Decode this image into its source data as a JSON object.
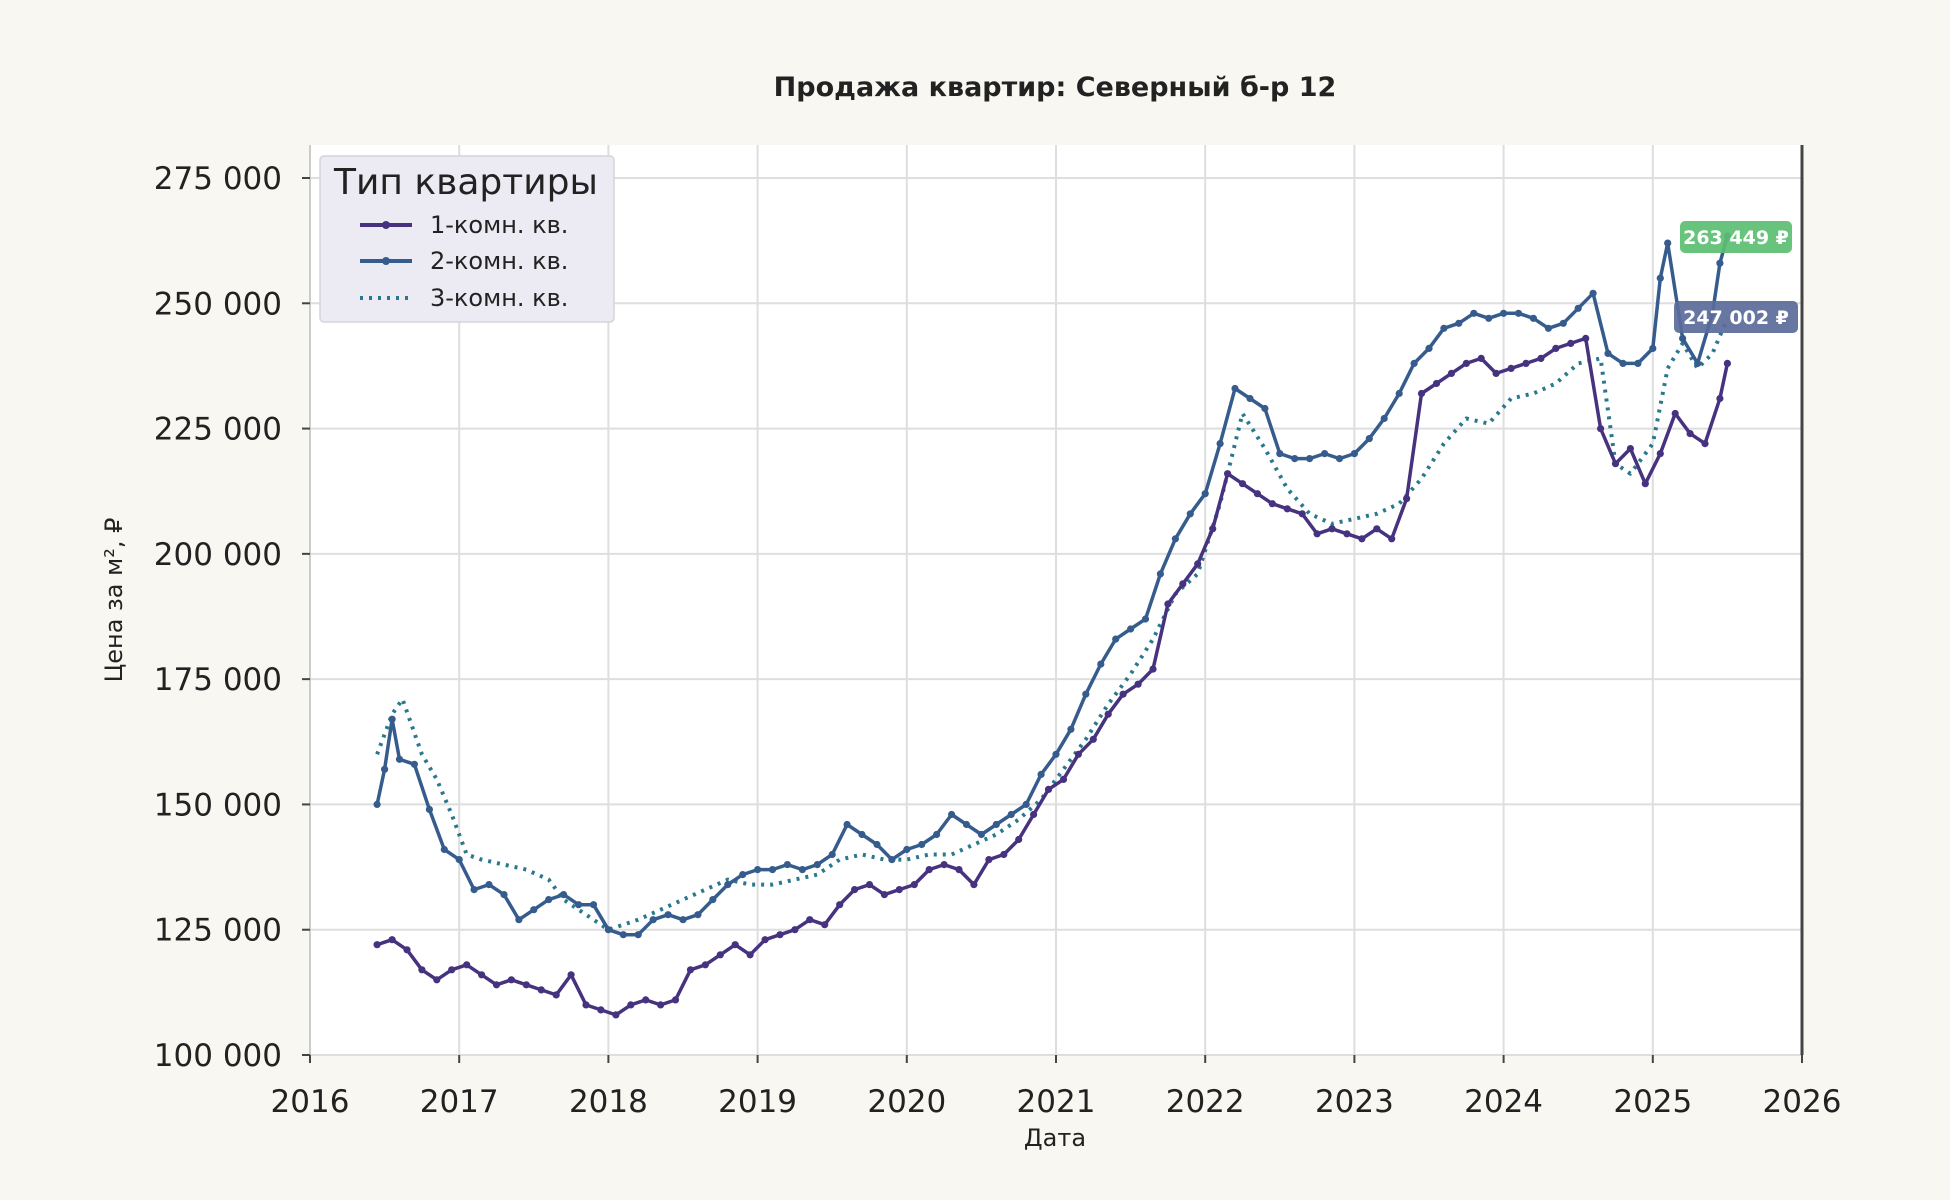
{
  "chart_data": {
    "type": "line",
    "title": "Продажа квартир: Северный б-р 12",
    "xlabel": "Дата",
    "ylabel": "Цена за м², ₽",
    "xlim": [
      2016,
      2026
    ],
    "ylim": [
      100000,
      280000
    ],
    "x_ticks": [
      "2016",
      "2017",
      "2018",
      "2019",
      "2020",
      "2021",
      "2022",
      "2023",
      "2024",
      "2025",
      "2026"
    ],
    "y_ticks": [
      "100 000",
      "125 000",
      "150 000",
      "175 000",
      "200 000",
      "225 000",
      "250 000",
      "275 000"
    ],
    "y_tick_values": [
      100000,
      125000,
      150000,
      175000,
      200000,
      225000,
      250000,
      275000
    ],
    "grid": true,
    "legend": {
      "title": "Тип квартиры",
      "placement": "top-left"
    },
    "series": [
      {
        "name": "1-комн. кв.",
        "color": "#46327e",
        "style": "solid-markers",
        "x": [
          2016.45,
          2016.55,
          2016.65,
          2016.75,
          2016.85,
          2016.95,
          2017.05,
          2017.15,
          2017.25,
          2017.35,
          2017.45,
          2017.55,
          2017.65,
          2017.75,
          2017.85,
          2017.95,
          2018.05,
          2018.15,
          2018.25,
          2018.35,
          2018.45,
          2018.55,
          2018.65,
          2018.75,
          2018.85,
          2018.95,
          2019.05,
          2019.15,
          2019.25,
          2019.35,
          2019.45,
          2019.55,
          2019.65,
          2019.75,
          2019.85,
          2019.95,
          2020.05,
          2020.15,
          2020.25,
          2020.35,
          2020.45,
          2020.55,
          2020.65,
          2020.75,
          2020.85,
          2020.95,
          2021.05,
          2021.15,
          2021.25,
          2021.35,
          2021.45,
          2021.55,
          2021.65,
          2021.75,
          2021.85,
          2021.95,
          2022.05,
          2022.15,
          2022.25,
          2022.35,
          2022.45,
          2022.55,
          2022.65,
          2022.75,
          2022.85,
          2022.95,
          2023.05,
          2023.15,
          2023.25,
          2023.35,
          2023.45,
          2023.55,
          2023.65,
          2023.75,
          2023.85,
          2023.95,
          2024.05,
          2024.15,
          2024.25,
          2024.35,
          2024.45,
          2024.55,
          2024.65,
          2024.75,
          2024.85,
          2024.95,
          2025.05,
          2025.15,
          2025.25,
          2025.35,
          2025.45,
          2025.5
        ],
        "y": [
          122000,
          123000,
          121000,
          117000,
          115000,
          117000,
          118000,
          116000,
          114000,
          115000,
          114000,
          113000,
          112000,
          116000,
          110000,
          109000,
          108000,
          110000,
          111000,
          110000,
          111000,
          117000,
          118000,
          120000,
          122000,
          120000,
          123000,
          124000,
          125000,
          127000,
          126000,
          130000,
          133000,
          134000,
          132000,
          133000,
          134000,
          137000,
          138000,
          137000,
          134000,
          139000,
          140000,
          143000,
          148000,
          153000,
          155000,
          160000,
          163000,
          168000,
          172000,
          174000,
          177000,
          190000,
          194000,
          198000,
          205000,
          216000,
          214000,
          212000,
          210000,
          209000,
          208000,
          204000,
          205000,
          204000,
          203000,
          205000,
          203000,
          211000,
          232000,
          234000,
          236000,
          238000,
          239000,
          236000,
          237000,
          238000,
          239000,
          241000,
          242000,
          243000,
          225000,
          218000,
          221000,
          214000,
          220000,
          228000,
          224000,
          222000,
          231000,
          238000
        ]
      },
      {
        "name": "2-комн. кв.",
        "color": "#365c8d",
        "style": "solid-markers",
        "x": [
          2016.45,
          2016.5,
          2016.55,
          2016.6,
          2016.7,
          2016.8,
          2016.9,
          2017.0,
          2017.1,
          2017.2,
          2017.3,
          2017.4,
          2017.5,
          2017.6,
          2017.7,
          2017.8,
          2017.9,
          2018.0,
          2018.1,
          2018.2,
          2018.3,
          2018.4,
          2018.5,
          2018.6,
          2018.7,
          2018.8,
          2018.9,
          2019.0,
          2019.1,
          2019.2,
          2019.3,
          2019.4,
          2019.5,
          2019.6,
          2019.7,
          2019.8,
          2019.9,
          2020.0,
          2020.1,
          2020.2,
          2020.3,
          2020.4,
          2020.5,
          2020.6,
          2020.7,
          2020.8,
          2020.9,
          2021.0,
          2021.1,
          2021.2,
          2021.3,
          2021.4,
          2021.5,
          2021.6,
          2021.7,
          2021.8,
          2021.9,
          2022.0,
          2022.1,
          2022.2,
          2022.3,
          2022.4,
          2022.5,
          2022.6,
          2022.7,
          2022.8,
          2022.9,
          2023.0,
          2023.1,
          2023.2,
          2023.3,
          2023.4,
          2023.5,
          2023.6,
          2023.7,
          2023.8,
          2023.9,
          2024.0,
          2024.1,
          2024.2,
          2024.3,
          2024.4,
          2024.5,
          2024.6,
          2024.7,
          2024.8,
          2024.9,
          2025.0,
          2025.05,
          2025.1,
          2025.2,
          2025.3,
          2025.4,
          2025.45,
          2025.5
        ],
        "y": [
          150000,
          157000,
          167000,
          159000,
          158000,
          149000,
          141000,
          139000,
          133000,
          134000,
          132000,
          127000,
          129000,
          131000,
          132000,
          130000,
          130000,
          125000,
          124000,
          124000,
          127000,
          128000,
          127000,
          128000,
          131000,
          134000,
          136000,
          137000,
          137000,
          138000,
          137000,
          138000,
          140000,
          146000,
          144000,
          142000,
          139000,
          141000,
          142000,
          144000,
          148000,
          146000,
          144000,
          146000,
          148000,
          150000,
          156000,
          160000,
          165000,
          172000,
          178000,
          183000,
          185000,
          187000,
          196000,
          203000,
          208000,
          212000,
          222000,
          233000,
          231000,
          229000,
          220000,
          219000,
          219000,
          220000,
          219000,
          220000,
          223000,
          227000,
          232000,
          238000,
          241000,
          245000,
          246000,
          248000,
          247000,
          248000,
          248000,
          247000,
          245000,
          246000,
          249000,
          252000,
          240000,
          238000,
          238000,
          241000,
          255000,
          262000,
          243000,
          238000,
          248000,
          258000,
          263449
        ]
      },
      {
        "name": "3-комн. кв.",
        "color": "#2a788e",
        "style": "dotted",
        "x": [
          2016.45,
          2016.55,
          2016.62,
          2016.75,
          2016.85,
          2016.95,
          2017.05,
          2017.15,
          2017.3,
          2017.45,
          2017.6,
          2017.7,
          2017.8,
          2017.9,
          2018.0,
          2018.1,
          2018.2,
          2018.35,
          2018.5,
          2018.65,
          2018.8,
          2018.95,
          2019.1,
          2019.25,
          2019.4,
          2019.55,
          2019.7,
          2019.85,
          2020.0,
          2020.15,
          2020.3,
          2020.45,
          2020.6,
          2020.75,
          2020.9,
          2021.05,
          2021.2,
          2021.35,
          2021.5,
          2021.65,
          2021.8,
          2021.95,
          2022.1,
          2022.25,
          2022.4,
          2022.55,
          2022.7,
          2022.85,
          2023.0,
          2023.15,
          2023.3,
          2023.45,
          2023.6,
          2023.75,
          2023.9,
          2024.05,
          2024.2,
          2024.35,
          2024.5,
          2024.65,
          2024.75,
          2024.85,
          2025.0,
          2025.1,
          2025.2,
          2025.3,
          2025.4,
          2025.5
        ],
        "y": [
          160000,
          168000,
          171000,
          160000,
          155000,
          148000,
          140000,
          139000,
          138000,
          137000,
          135000,
          131000,
          129000,
          127000,
          125000,
          126000,
          127000,
          129000,
          131000,
          133000,
          135000,
          134000,
          134000,
          135000,
          136000,
          139000,
          140000,
          139000,
          139000,
          140000,
          140000,
          142000,
          144000,
          147000,
          151000,
          157000,
          163000,
          170000,
          176000,
          183000,
          192000,
          196000,
          210000,
          228000,
          221000,
          213000,
          208000,
          206000,
          207000,
          208000,
          210000,
          215000,
          222000,
          227000,
          226000,
          231000,
          232000,
          234000,
          238000,
          239000,
          218000,
          216000,
          222000,
          237000,
          242000,
          237000,
          240000,
          247002
        ]
      }
    ],
    "annotations": [
      {
        "text": "263 449 ₽",
        "series": "2-комн. кв.",
        "value": 263449,
        "color": "#5bbf72"
      },
      {
        "text": "247 002 ₽",
        "series": "3-комн. кв.",
        "value": 247002,
        "color": "#5b6b9a"
      }
    ]
  }
}
